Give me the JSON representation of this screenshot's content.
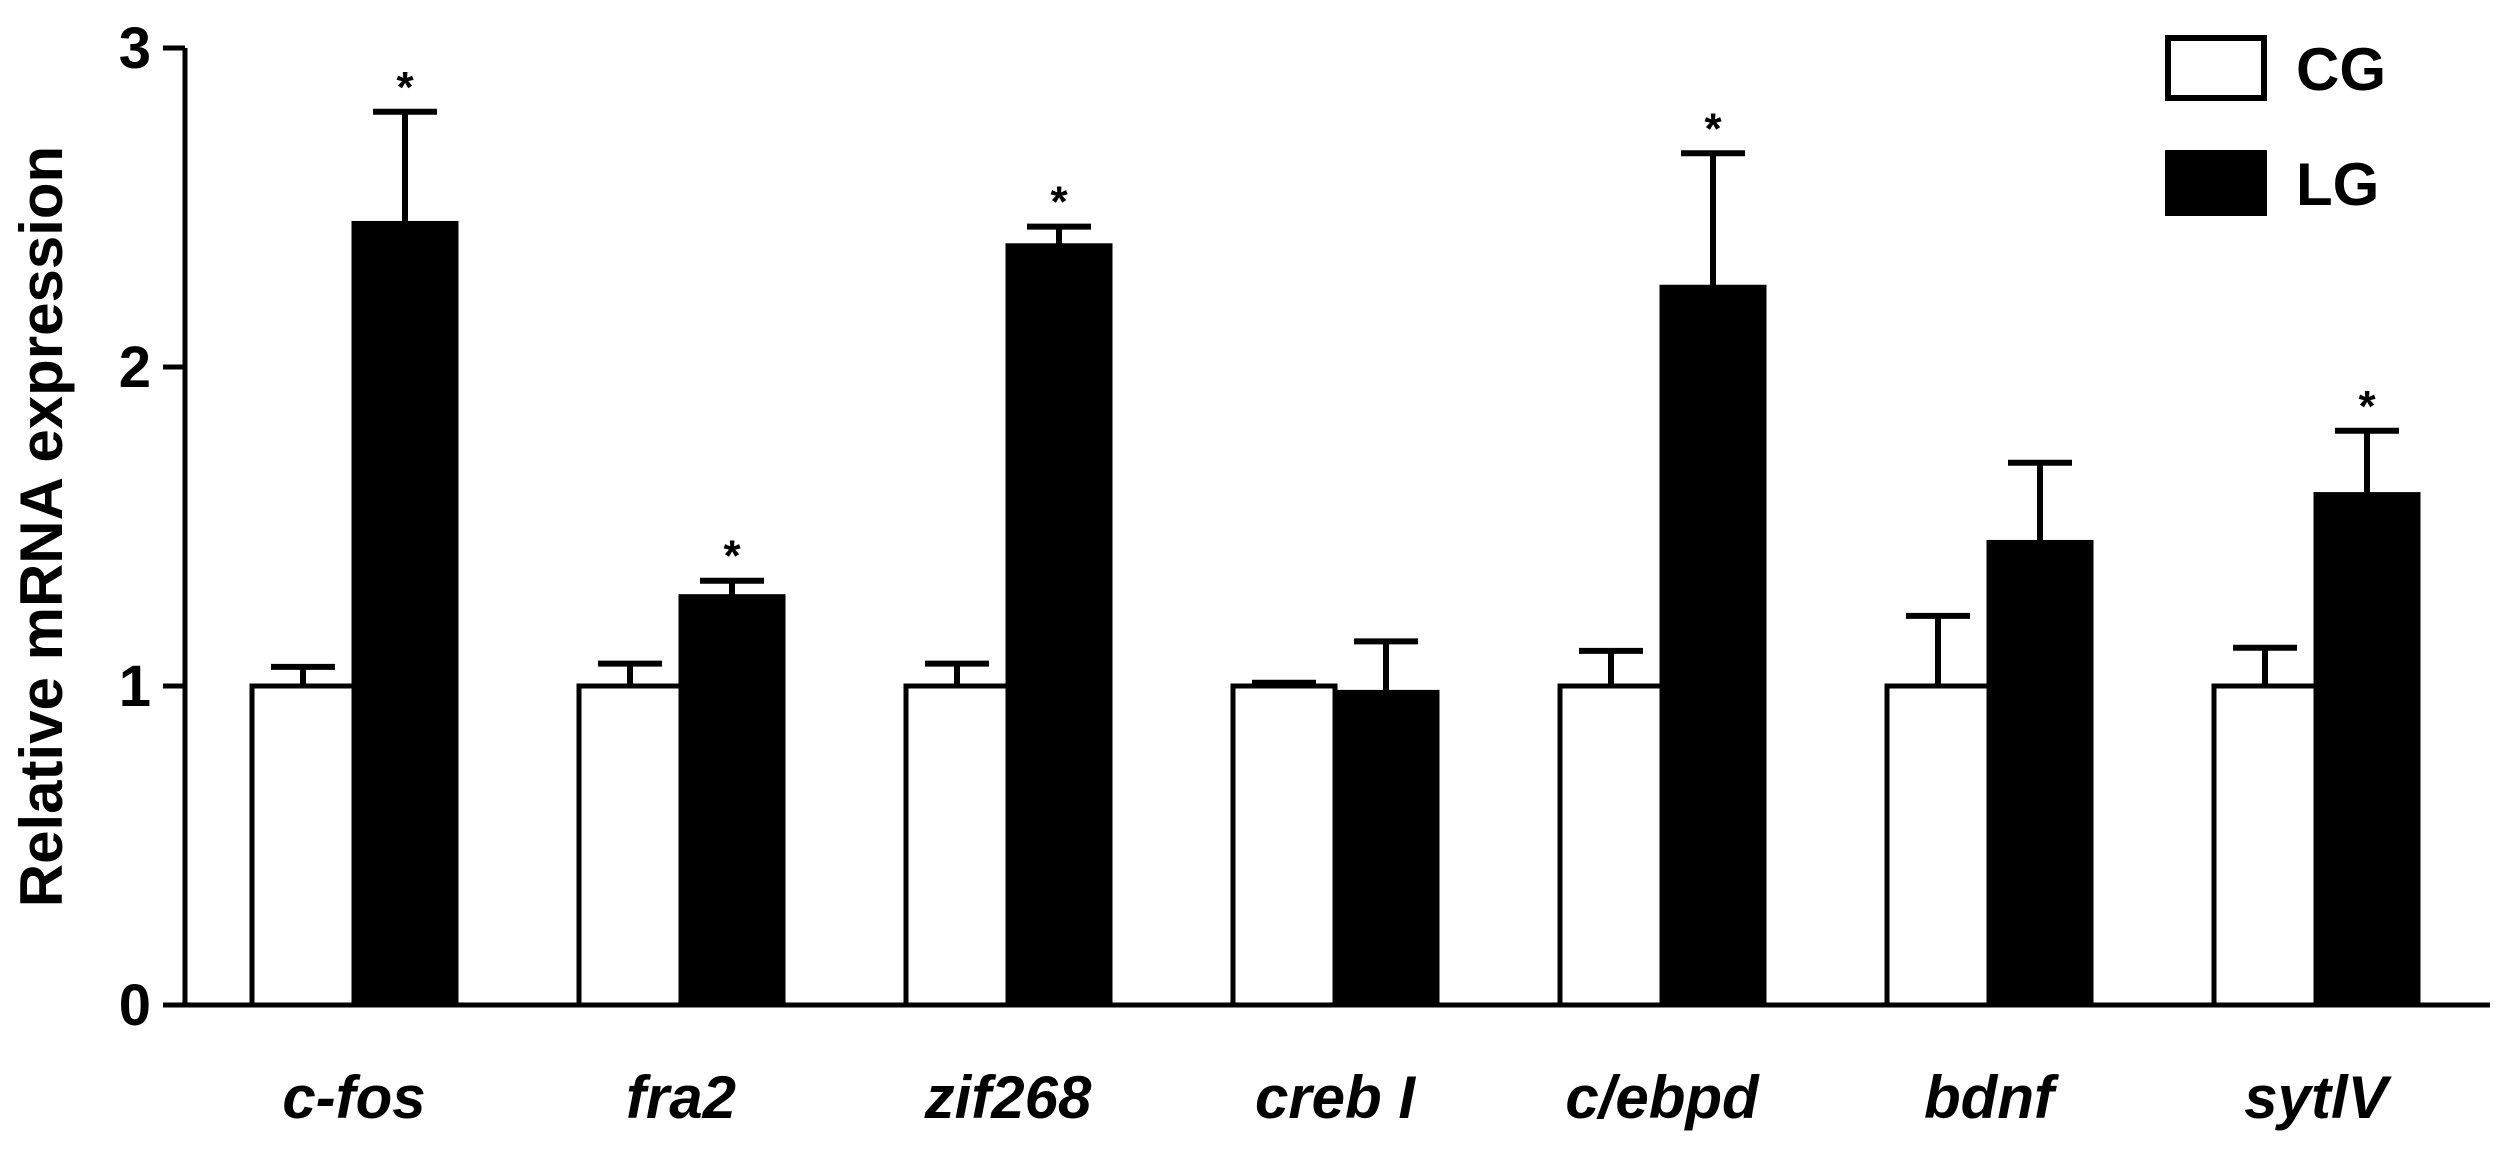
{
  "chart_data": {
    "type": "bar",
    "ylabel": "Relative mRNA expression",
    "ylim": [
      0,
      3
    ],
    "yticks": [
      "0",
      "1",
      "2",
      "3"
    ],
    "categories": [
      "c-fos",
      "fra2",
      "zif268",
      "creb I",
      "c/ebpd",
      "bdnf",
      "sytlV"
    ],
    "series": [
      {
        "name": "CG",
        "fill": "#ffffff",
        "values": [
          1.0,
          1.0,
          1.0,
          1.0,
          1.0,
          1.0,
          1.0
        ],
        "errors": [
          0.06,
          0.07,
          0.07,
          0.01,
          0.11,
          0.22,
          0.12
        ]
      },
      {
        "name": "LG",
        "fill": "#000000",
        "values": [
          2.45,
          1.28,
          2.38,
          0.98,
          2.25,
          1.45,
          1.6
        ],
        "errors": [
          0.35,
          0.05,
          0.06,
          0.16,
          0.42,
          0.25,
          0.2
        ]
      }
    ],
    "significance": [
      "*",
      "*",
      "*",
      "",
      "*",
      "",
      "*"
    ],
    "legend_position": "top-right",
    "grid": false
  }
}
